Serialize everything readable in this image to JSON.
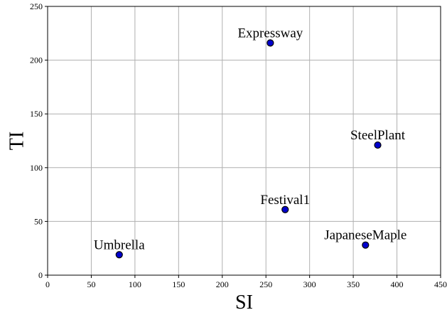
{
  "chart_data": {
    "type": "scatter",
    "title": "",
    "xlabel": "SI",
    "ylabel": "TI",
    "xlim": [
      0,
      450
    ],
    "ylim": [
      0,
      250
    ],
    "xticks": [
      0,
      50,
      100,
      150,
      200,
      250,
      300,
      350,
      400,
      450
    ],
    "yticks": [
      0,
      50,
      100,
      150,
      200,
      250
    ],
    "grid": true,
    "marker_color": "#0000cc",
    "marker_edge_color": "#000000",
    "points": [
      {
        "label": "Expressway",
        "x": 255,
        "y": 216
      },
      {
        "label": "SteelPlant",
        "x": 378,
        "y": 121
      },
      {
        "label": "Festival1",
        "x": 272,
        "y": 61
      },
      {
        "label": "JapaneseMaple",
        "x": 364,
        "y": 28
      },
      {
        "label": "Umbrella",
        "x": 82,
        "y": 19
      }
    ]
  }
}
